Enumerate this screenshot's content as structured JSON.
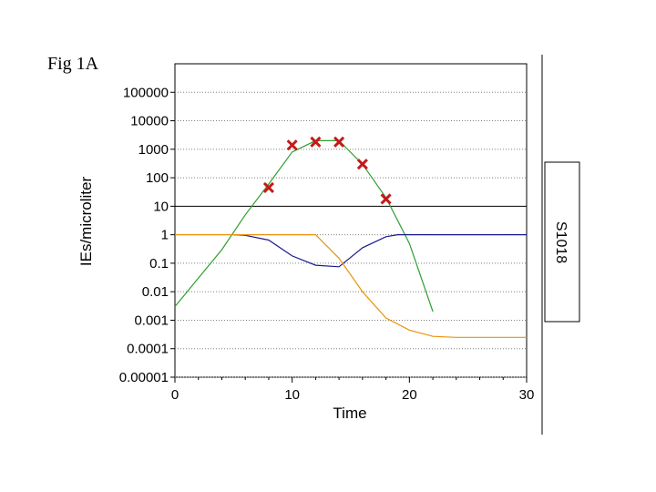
{
  "figure_label": "Fig 1A",
  "panel_label": "S1018",
  "colors": {
    "green": "#2e9e2e",
    "blue": "#1a1a8c",
    "orange": "#e8940c",
    "red_marker": "#c41a1a",
    "grid": "#808080"
  },
  "chart_data": {
    "type": "line",
    "xlabel": "Time",
    "ylabel": "IEs/microliter",
    "xlim": [
      0,
      30
    ],
    "ylim": [
      1e-05,
      1000000
    ],
    "y_scale": "log",
    "grid": "horizontal-dotted",
    "x_ticks": [
      0,
      10,
      20,
      30
    ],
    "x_tick_labels": [
      "0",
      "10",
      "20",
      "30"
    ],
    "y_ticks": [
      1e-05,
      0.0001,
      0.001,
      0.01,
      0.1,
      1,
      10,
      100,
      1000,
      10000,
      100000
    ],
    "y_tick_labels": [
      "0.00001",
      "0.0001",
      "0.001",
      "0.01",
      "0.1",
      "1",
      "10",
      "100",
      "1000",
      "10000",
      "100000"
    ],
    "threshold_line": {
      "y": 10
    },
    "series": [
      {
        "color": "#2e9e2e",
        "x": [
          0,
          2,
          4,
          6,
          8,
          10,
          12,
          14,
          16,
          18,
          20,
          22
        ],
        "y": [
          0.003,
          0.03,
          0.3,
          5,
          60,
          800,
          2000,
          2000,
          300,
          20,
          0.5,
          0.002
        ]
      },
      {
        "color": "#1a1a8c",
        "x": [
          5,
          6,
          8,
          10,
          12,
          14,
          16,
          18,
          19,
          20,
          22,
          25,
          30
        ],
        "y": [
          1,
          0.95,
          0.65,
          0.18,
          0.085,
          0.075,
          0.35,
          0.85,
          1,
          1,
          1,
          1,
          1
        ]
      },
      {
        "color": "#e8940c",
        "x": [
          0,
          2,
          4,
          6,
          8,
          10,
          12,
          14,
          16,
          18,
          20,
          22,
          24,
          27,
          30
        ],
        "y": [
          1,
          1,
          1,
          1,
          1,
          1,
          1,
          0.15,
          0.01,
          0.0012,
          0.00045,
          0.00027,
          0.00025,
          0.00025,
          0.00025
        ]
      },
      {
        "type": "scatter",
        "marker": "x",
        "color": "#c41a1a",
        "x": [
          8,
          10,
          12,
          14,
          16,
          18
        ],
        "y": [
          45,
          1400,
          1800,
          1800,
          300,
          18
        ]
      }
    ]
  }
}
